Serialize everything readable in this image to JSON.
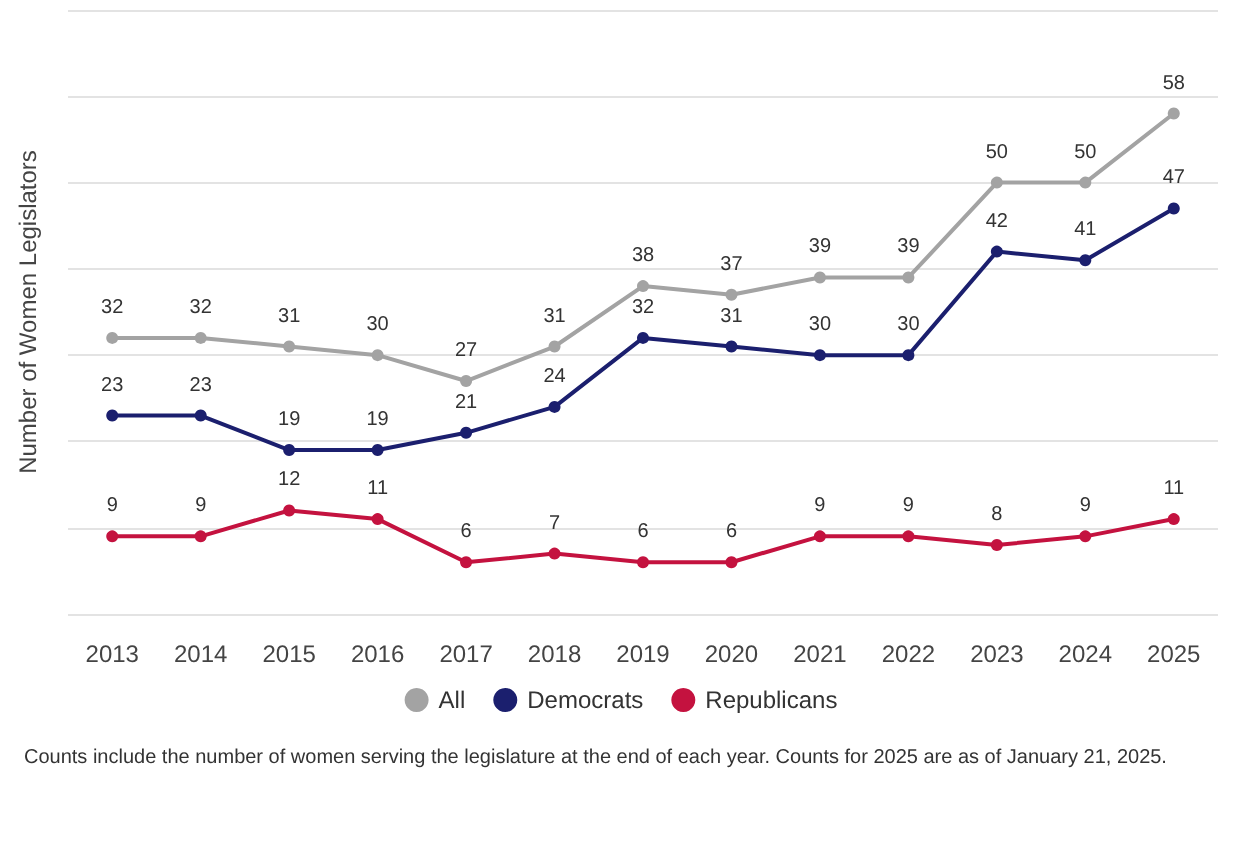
{
  "chart_data": {
    "type": "line",
    "ylabel": "Number of Women Legislators",
    "categories": [
      "2013",
      "2014",
      "2015",
      "2016",
      "2017",
      "2018",
      "2019",
      "2020",
      "2021",
      "2022",
      "2023",
      "2024",
      "2025"
    ],
    "series": [
      {
        "name": "All",
        "color": "#a3a3a3",
        "values": [
          32,
          32,
          31,
          30,
          27,
          31,
          38,
          37,
          39,
          39,
          50,
          50,
          58
        ]
      },
      {
        "name": "Democrats",
        "color": "#1b1f6e",
        "values": [
          23,
          23,
          19,
          19,
          21,
          24,
          32,
          31,
          30,
          30,
          42,
          41,
          47
        ]
      },
      {
        "name": "Republicans",
        "color": "#c4123f",
        "values": [
          9,
          9,
          12,
          11,
          6,
          7,
          6,
          6,
          9,
          9,
          8,
          9,
          11
        ]
      }
    ],
    "ylim": [
      0,
      70
    ],
    "yticks": [
      0,
      10,
      20,
      30,
      40,
      50,
      60,
      70
    ],
    "tick_labels": "x",
    "grid": "y",
    "data_labels": true,
    "marker": "circle",
    "line_style": "solid",
    "legend": "bottom",
    "annotations": [
      "Counts include the number of women serving the legislature at the end of each year. Counts for 2025 are as of January 21, 2025."
    ]
  }
}
